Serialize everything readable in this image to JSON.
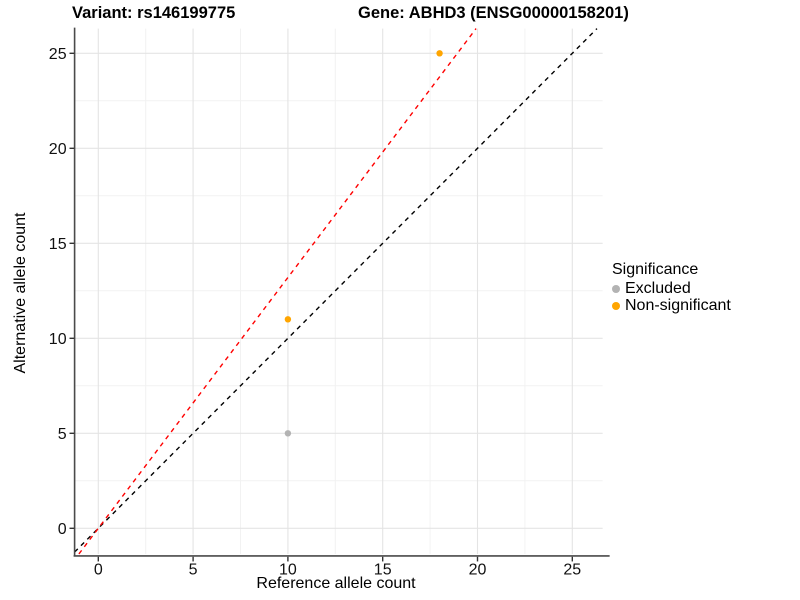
{
  "titles": {
    "variant": "Variant: rs146199775",
    "gene": "Gene: ABHD3 (ENSG00000158201)"
  },
  "legend": {
    "title": "Significance",
    "items": [
      {
        "label": "Excluded",
        "color": "#B3B3B3"
      },
      {
        "label": "Non-significant",
        "color": "#FFA500"
      }
    ]
  },
  "chart_data": {
    "type": "scatter",
    "title": "Variant: rs146199775 | Gene: ABHD3 (ENSG00000158201)",
    "xlabel": "Reference allele count",
    "ylabel": "Alternative allele count",
    "xlim": [
      -1.25,
      26.6
    ],
    "ylim": [
      -1.35,
      26.3
    ],
    "x_ticks": [
      0,
      5,
      10,
      15,
      20,
      25
    ],
    "y_ticks": [
      0,
      5,
      10,
      15,
      20,
      25
    ],
    "minor_grid": [
      2.5,
      7.5,
      12.5,
      17.5,
      22.5
    ],
    "grid": "on",
    "legend_position": "right",
    "series": [
      {
        "name": "Excluded",
        "color": "#B3B3B3",
        "points": [
          [
            10,
            5
          ]
        ]
      },
      {
        "name": "Non-significant",
        "color": "#FFA500",
        "points": [
          [
            10,
            11
          ],
          [
            18,
            25
          ]
        ]
      }
    ],
    "reference_lines": [
      {
        "name": "identity",
        "slope": 1.0,
        "intercept": 0,
        "color": "#000000",
        "style": "dashed"
      },
      {
        "name": "fitted-allelic-ratio",
        "slope": 1.32,
        "intercept": 0,
        "color": "#FF0000",
        "style": "dashed"
      }
    ]
  },
  "style": {
    "grid_major_color": "#E4E4E4",
    "grid_minor_color": "#F2F2F2",
    "axis_line_color": "#4a4a4a",
    "tick_color": "#333333",
    "tick_label_color": "#111111"
  }
}
